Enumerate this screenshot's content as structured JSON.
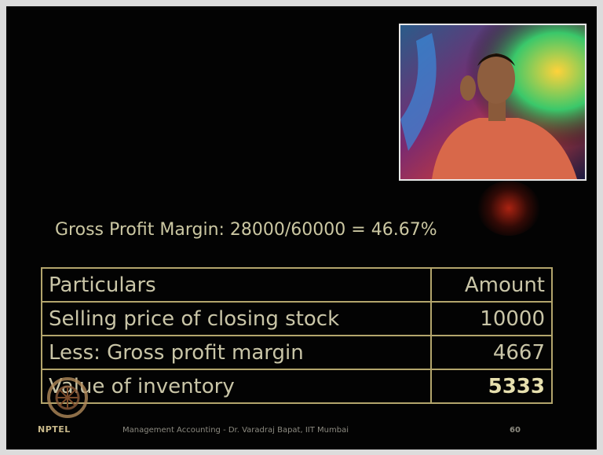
{
  "heading": "Gross Profit Margin: 28000/60000 = 46.67%",
  "table": {
    "header": [
      "Particulars",
      "Amount"
    ],
    "rows": [
      [
        "Selling price of closing stock",
        "10000"
      ],
      [
        "Less: Gross profit margin",
        "4667"
      ],
      [
        "Value of inventory",
        "5333"
      ]
    ]
  },
  "footer": {
    "logo": "NPTEL",
    "course": "Management Accounting - Dr. Varadraj Bapat, IIT Mumbai",
    "page": "60"
  }
}
